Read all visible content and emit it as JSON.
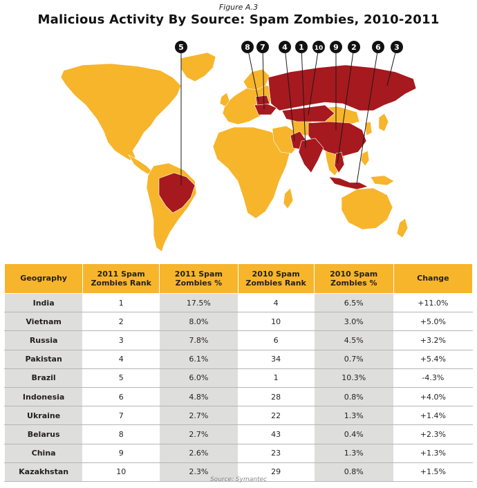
{
  "figure_label": "Figure A.3",
  "title": "Malicious Activity By Source: Spam Zombies, 2010-2011",
  "source": "Source: Symantec",
  "colors": {
    "map_base": "#f7b52b",
    "map_highlight": "#a6191e",
    "header_bg": "#f7b52b",
    "row_shade": "#dededd"
  },
  "map_badges": [
    "5",
    "8",
    "7",
    "4",
    "1",
    "10",
    "9",
    "2",
    "6",
    "3"
  ],
  "table": {
    "headers": [
      "Geography",
      "2011 Spam Zombies Rank",
      "2011 Spam Zombies %",
      "2010 Spam Zombies Rank",
      "2010 Spam Zombies %",
      "Change"
    ],
    "rows": [
      [
        "India",
        "1",
        "17.5%",
        "4",
        "6.5%",
        "+11.0%"
      ],
      [
        "Vietnam",
        "2",
        "8.0%",
        "10",
        "3.0%",
        "+5.0%"
      ],
      [
        "Russia",
        "3",
        "7.8%",
        "6",
        "4.5%",
        "+3.2%"
      ],
      [
        "Pakistan",
        "4",
        "6.1%",
        "34",
        "0.7%",
        "+5.4%"
      ],
      [
        "Brazil",
        "5",
        "6.0%",
        "1",
        "10.3%",
        "-4.3%"
      ],
      [
        "Indonesia",
        "6",
        "4.8%",
        "28",
        "0.8%",
        "+4.0%"
      ],
      [
        "Ukraine",
        "7",
        "2.7%",
        "22",
        "1.3%",
        "+1.4%"
      ],
      [
        "Belarus",
        "8",
        "2.7%",
        "43",
        "0.4%",
        "+2.3%"
      ],
      [
        "China",
        "9",
        "2.6%",
        "23",
        "1.3%",
        "+1.3%"
      ],
      [
        "Kazakhstan",
        "10",
        "2.3%",
        "29",
        "0.8%",
        "+1.5%"
      ]
    ]
  }
}
